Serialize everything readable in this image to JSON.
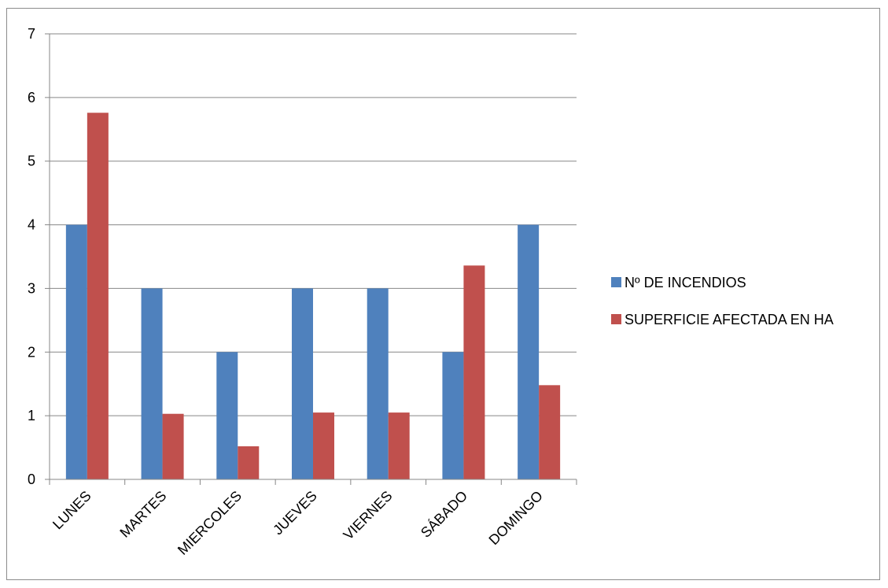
{
  "chart_data": {
    "type": "bar",
    "categories": [
      "LUNES",
      "MARTES",
      "MIERCOLES",
      "JUEVES",
      "VIERNES",
      "SÁBADO",
      "DOMINGO"
    ],
    "series": [
      {
        "name": "Nº DE INCENDIOS",
        "color": "#4f81bd",
        "values": [
          4,
          3,
          2,
          3,
          3,
          2,
          4
        ]
      },
      {
        "name": "SUPERFICIE AFECTADA EN HA",
        "color": "#c0504d",
        "values": [
          5.76,
          1.03,
          0.52,
          1.05,
          1.05,
          3.36,
          1.48
        ]
      }
    ],
    "ylim": [
      0,
      7
    ],
    "yticks": [
      0,
      1,
      2,
      3,
      4,
      5,
      6,
      7
    ],
    "grid": true,
    "legend": "right"
  }
}
